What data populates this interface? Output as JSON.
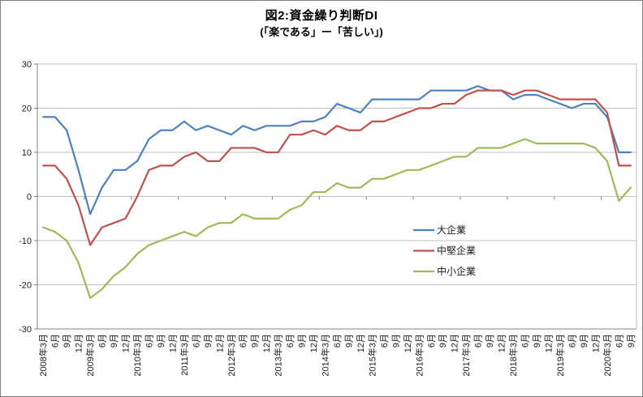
{
  "figure": {
    "title": "図2:資金繰り判断DI",
    "subtitle": "(「楽である」ー「苦しい」)"
  },
  "chart_data": {
    "type": "line",
    "title": "図2:資金繰り判断DI",
    "subtitle": "(「楽である」ー「苦しい」)",
    "categories": [
      "2008年3月",
      "6月",
      "9月",
      "12月",
      "2009年3月",
      "6月",
      "9月",
      "12月",
      "2010年3月",
      "6月",
      "9月",
      "12月",
      "2011年3月",
      "6月",
      "9月",
      "12月",
      "2012年3月",
      "6月",
      "9月",
      "12月",
      "2013年3月",
      "6月",
      "9月",
      "12月",
      "2014年3月",
      "6月",
      "9月",
      "12月",
      "2015年3月",
      "6月",
      "9月",
      "12月",
      "2016年3月",
      "6月",
      "9月",
      "12月",
      "2017年3月",
      "6月",
      "9月",
      "12月",
      "2018年3月",
      "6月",
      "9月",
      "12月",
      "2019年3月",
      "6月",
      "9月",
      "12月",
      "2020年3月",
      "6月",
      "9月"
    ],
    "series": [
      {
        "name": "大企業",
        "color": "#4F81BD",
        "values": [
          18,
          18,
          15,
          6,
          -4,
          2,
          6,
          6,
          8,
          13,
          15,
          15,
          17,
          15,
          16,
          15,
          14,
          16,
          15,
          16,
          16,
          16,
          17,
          17,
          18,
          21,
          20,
          19,
          22,
          22,
          22,
          22,
          22,
          24,
          24,
          24,
          24,
          25,
          24,
          24,
          22,
          23,
          23,
          22,
          21,
          20,
          21,
          21,
          18,
          10,
          10
        ]
      },
      {
        "name": "中堅企業",
        "color": "#C0504D",
        "values": [
          7,
          7,
          4,
          -2,
          -11,
          -7,
          -6,
          -5,
          0,
          6,
          7,
          7,
          9,
          10,
          8,
          8,
          11,
          11,
          11,
          10,
          10,
          14,
          14,
          15,
          14,
          16,
          15,
          15,
          17,
          17,
          18,
          19,
          20,
          20,
          21,
          21,
          23,
          24,
          24,
          24,
          23,
          24,
          24,
          23,
          22,
          22,
          22,
          22,
          19,
          7,
          7
        ]
      },
      {
        "name": "中小企業",
        "color": "#9BBB59",
        "values": [
          -7,
          -8,
          -10,
          -15,
          -23,
          -21,
          -18,
          -16,
          -13,
          -11,
          -10,
          -9,
          -8,
          -9,
          -7,
          -6,
          -6,
          -4,
          -5,
          -5,
          -5,
          -3,
          -2,
          1,
          1,
          3,
          2,
          2,
          4,
          4,
          5,
          6,
          6,
          7,
          8,
          9,
          9,
          11,
          11,
          11,
          12,
          13,
          12,
          12,
          12,
          12,
          12,
          11,
          8,
          -1,
          2
        ]
      }
    ],
    "ylim": [
      -30,
      30
    ],
    "yticks": [
      30,
      20,
      10,
      0,
      -10,
      -20,
      -30
    ],
    "grid": true,
    "legend_position": "inside-middle-right",
    "x_tick_interval": 4
  }
}
